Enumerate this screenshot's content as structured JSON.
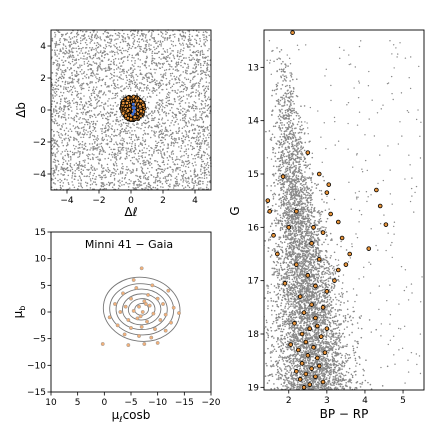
{
  "chart_data": [
    {
      "id": "sky",
      "type": "scatter",
      "xlabel": "Δℓ",
      "ylabel": "Δb",
      "xlim": [
        -5,
        5
      ],
      "ylim": [
        -5,
        5
      ],
      "xticks": [
        -4,
        -2,
        0,
        2,
        4
      ],
      "yticks": [
        -4,
        -2,
        0,
        2,
        4
      ],
      "x_tick_labels": [
        "−4",
        "−2",
        "0",
        "2",
        "4"
      ],
      "y_tick_labels": [
        "−4",
        "−2",
        "0",
        "2",
        "4"
      ],
      "grid": false,
      "series": [
        {
          "role": "field stars",
          "color": "#888888",
          "description_points": "uniform field, ~3500 stars"
        },
        {
          "role": "cluster members",
          "color": "#e8943a",
          "edge": "#000000",
          "center": [
            0.1,
            0.1
          ],
          "radius": 0.75
        },
        {
          "role": "cluster center",
          "color": "#3a6fd8",
          "center": [
            0.2,
            0.15
          ]
        }
      ]
    },
    {
      "id": "cmd",
      "type": "scatter",
      "xlabel": "BP − RP",
      "ylabel": "G",
      "xlim": [
        1.35,
        5.55
      ],
      "ylim": [
        19.05,
        12.3
      ],
      "y_inverted": true,
      "xticks": [
        2,
        3,
        4,
        5
      ],
      "yticks": [
        13,
        14,
        15,
        16,
        17,
        18,
        19
      ],
      "x_tick_labels": [
        "2",
        "3",
        "4",
        "5"
      ],
      "y_tick_labels": [
        "13",
        "14",
        "15",
        "16",
        "17",
        "18",
        "19"
      ],
      "grid": false,
      "series": [
        {
          "role": "field stars",
          "color": "#888888"
        },
        {
          "role": "cluster members",
          "color": "#e8943a",
          "edge": "#000000",
          "points": [
            [
              2.1,
              12.35
            ],
            [
              2.5,
              14.6
            ],
            [
              2.8,
              15.0
            ],
            [
              1.85,
              15.05
            ],
            [
              3.05,
              15.2
            ],
            [
              4.3,
              15.3
            ],
            [
              1.45,
              15.5
            ],
            [
              3.0,
              15.35
            ],
            [
              4.4,
              15.6
            ],
            [
              2.2,
              15.7
            ],
            [
              3.1,
              15.75
            ],
            [
              1.5,
              15.7
            ],
            [
              3.3,
              15.9
            ],
            [
              4.55,
              15.95
            ],
            [
              1.6,
              16.15
            ],
            [
              2.9,
              16.1
            ],
            [
              3.4,
              16.2
            ],
            [
              4.1,
              16.4
            ],
            [
              1.7,
              16.5
            ],
            [
              2.6,
              16.3
            ],
            [
              3.6,
              16.5
            ],
            [
              2.8,
              16.6
            ],
            [
              2.2,
              16.7
            ],
            [
              3.3,
              16.8
            ],
            [
              2.5,
              16.9
            ],
            [
              1.9,
              17.05
            ],
            [
              2.7,
              17.1
            ],
            [
              3.0,
              17.2
            ],
            [
              2.3,
              17.3
            ],
            [
              2.6,
              17.45
            ],
            [
              2.9,
              17.5
            ],
            [
              2.4,
              17.6
            ],
            [
              2.7,
              17.7
            ],
            [
              2.15,
              17.8
            ],
            [
              2.55,
              17.9
            ],
            [
              2.35,
              18.0
            ],
            [
              2.85,
              18.05
            ],
            [
              2.45,
              18.15
            ],
            [
              2.65,
              18.25
            ],
            [
              2.25,
              18.3
            ],
            [
              2.5,
              18.4
            ],
            [
              2.75,
              18.45
            ],
            [
              2.35,
              18.55
            ],
            [
              2.6,
              18.65
            ],
            [
              2.45,
              18.75
            ],
            [
              2.7,
              18.8
            ],
            [
              2.3,
              18.85
            ],
            [
              2.55,
              18.95
            ],
            [
              2.4,
              19.0
            ],
            [
              2.8,
              18.6
            ],
            [
              2.05,
              18.2
            ],
            [
              3.0,
              17.9
            ],
            [
              2.95,
              18.35
            ],
            [
              2.2,
              18.7
            ],
            [
              3.2,
              17.0
            ],
            [
              3.5,
              16.7
            ],
            [
              2.0,
              16.0
            ],
            [
              2.65,
              16.0
            ],
            [
              2.75,
              17.85
            ],
            [
              2.9,
              18.9
            ]
          ]
        }
      ]
    },
    {
      "id": "pm",
      "type": "scatter",
      "title": "Minni 41  −  Gaia",
      "xlabel": "μℓcosb",
      "ylabel": "μb",
      "xlim": [
        10,
        -20
      ],
      "ylim": [
        -15,
        15
      ],
      "x_inverted": true,
      "xticks": [
        10,
        5,
        0,
        -5,
        -10,
        -15,
        -20
      ],
      "yticks": [
        15,
        10,
        5,
        0,
        -5,
        -10,
        -15
      ],
      "x_tick_labels": [
        "10",
        "5",
        "0",
        "−5",
        "−10",
        "−15",
        "−20"
      ],
      "y_tick_labels": [
        "15",
        "10",
        "5",
        "0",
        "−5",
        "−10",
        "−15"
      ],
      "grid": false,
      "contours": {
        "center": [
          -7,
          0.5
        ],
        "color": "#777777",
        "ellipses": [
          [
            1.3,
            1.1
          ],
          [
            2.5,
            2.0
          ],
          [
            3.6,
            2.9
          ],
          [
            4.8,
            3.8
          ],
          [
            6.0,
            4.8
          ],
          [
            7.2,
            6.0
          ]
        ]
      },
      "series": [
        {
          "role": "cluster members",
          "color": "#f0b07a",
          "edge": "#999999",
          "points": [
            [
              -7,
              8.2
            ],
            [
              -3.5,
              3.5
            ],
            [
              -6,
              4.5
            ],
            [
              -9,
              5.0
            ],
            [
              -12,
              4.0
            ],
            [
              -5,
              2.5
            ],
            [
              -7.5,
              2.0
            ],
            [
              -10,
              2.5
            ],
            [
              -2,
              1.5
            ],
            [
              -4,
              1.0
            ],
            [
              -6.5,
              1.0
            ],
            [
              -8.5,
              1.2
            ],
            [
              -11,
              1.5
            ],
            [
              -13,
              0.8
            ],
            [
              -3,
              0.0
            ],
            [
              -5.5,
              0.2
            ],
            [
              -7.2,
              0.0
            ],
            [
              -9.2,
              -0.3
            ],
            [
              -11.5,
              -0.5
            ],
            [
              -14,
              -0.2
            ],
            [
              -1,
              -1.0
            ],
            [
              -4.5,
              -1.5
            ],
            [
              -6.2,
              -1.2
            ],
            [
              -8,
              -1.8
            ],
            [
              -10.5,
              -1.5
            ],
            [
              -12.5,
              -2.0
            ],
            [
              -2.5,
              -2.5
            ],
            [
              -5,
              -3.0
            ],
            [
              -7,
              -2.8
            ],
            [
              -9.5,
              -3.2
            ],
            [
              -11.5,
              -3.5
            ],
            [
              -3.8,
              -4.2
            ],
            [
              -6.5,
              -4.5
            ],
            [
              -8.8,
              -4.8
            ],
            [
              0.3,
              -6.0
            ],
            [
              -4.5,
              -6.2
            ],
            [
              -7.5,
              -6.0
            ],
            [
              -10,
              -5.8
            ],
            [
              -5.5,
              6.0
            ],
            [
              -8.2,
              3.2
            ],
            [
              -6.8,
              -0.8
            ],
            [
              -7.8,
              1.5
            ]
          ]
        }
      ]
    }
  ]
}
